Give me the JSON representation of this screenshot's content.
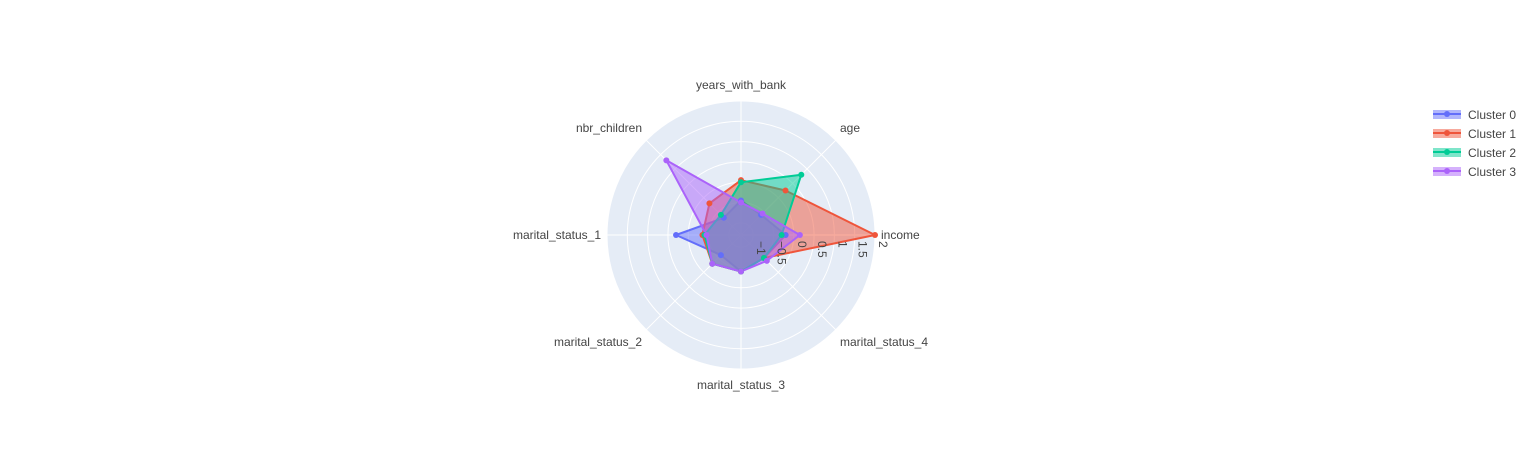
{
  "chart_data": {
    "type": "radar",
    "categories": [
      "income",
      "age",
      "years_with_bank",
      "nbr_children",
      "marital_status_1",
      "marital_status_2",
      "marital_status_3",
      "marital_status_4"
    ],
    "radial_range": [
      -1.3,
      2
    ],
    "radial_ticks": [
      -1,
      -0.5,
      0,
      0.5,
      1,
      1.5,
      2
    ],
    "radial_tick_labels": [
      "−1",
      "−0.5",
      "0",
      "0.5",
      "1",
      "1.5",
      "2"
    ],
    "grid": true,
    "legend_position": "top-right",
    "series": [
      {
        "name": "Cluster 0",
        "color": "#636efa",
        "values": [
          -0.2,
          -0.6,
          -0.45,
          -0.7,
          0.3,
          -0.6,
          -0.4,
          -0.5
        ]
      },
      {
        "name": "Cluster 1",
        "color": "#ef553b",
        "values": [
          2.0,
          0.25,
          0.05,
          -0.2,
          -0.35,
          -0.3,
          -0.4,
          -0.5
        ]
      },
      {
        "name": "Cluster 2",
        "color": "#00cc96",
        "values": [
          -0.3,
          0.8,
          0.0,
          -0.6,
          -0.4,
          -0.3,
          -0.4,
          -0.5
        ]
      },
      {
        "name": "Cluster 3",
        "color": "#ab63fa",
        "values": [
          0.15,
          -0.55,
          -0.5,
          1.3,
          -0.45,
          -0.3,
          -0.4,
          -0.4
        ]
      }
    ]
  }
}
